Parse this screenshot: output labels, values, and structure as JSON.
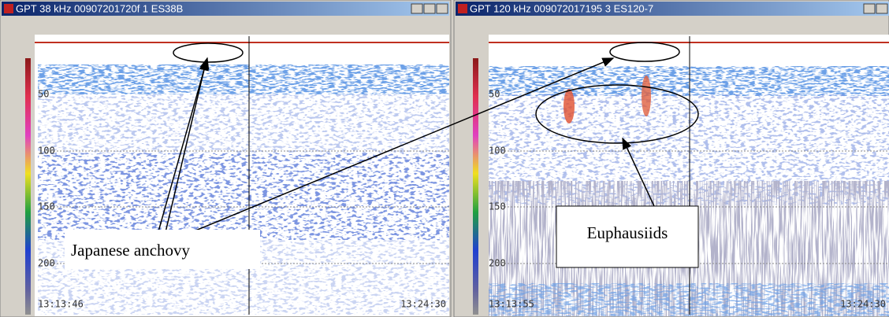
{
  "windows": [
    {
      "title": "GPT  38 kHz 00907201720f 1 ES38B",
      "depth_labels": [
        "50",
        "100",
        "150",
        "200"
      ],
      "start_time": "13:13:46",
      "end_time": "13:24:30"
    },
    {
      "title": "GPT 120 kHz 009072017195 3 ES120-7",
      "depth_labels": [
        "50",
        "100",
        "150",
        "200"
      ],
      "start_time": "13:13:55",
      "end_time": "13:24:30"
    }
  ],
  "annotations": [
    "Japanese anchovy",
    "Euphausiids"
  ]
}
